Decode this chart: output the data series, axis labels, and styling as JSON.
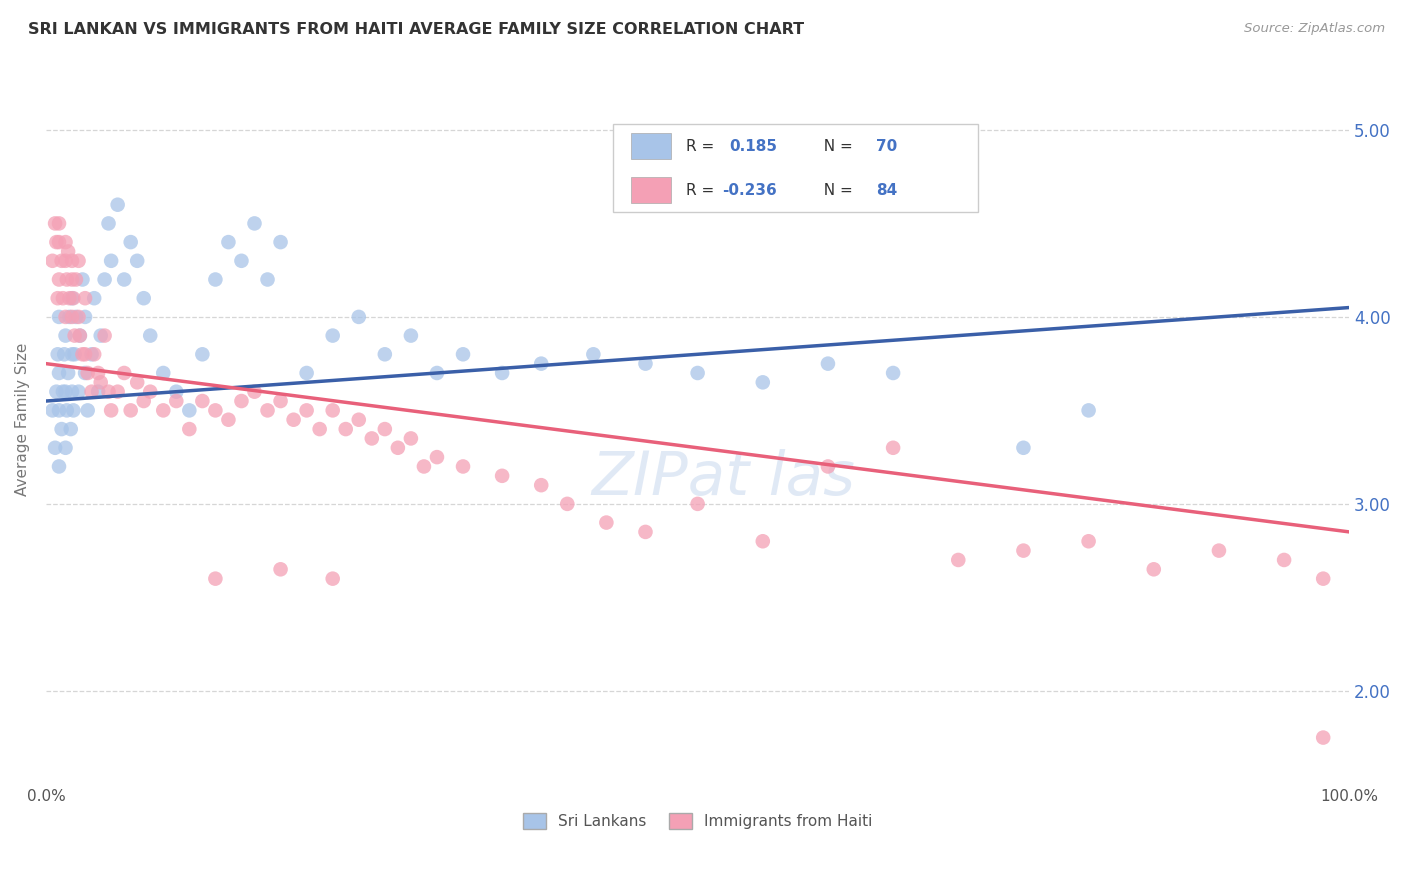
{
  "title": "SRI LANKAN VS IMMIGRANTS FROM HAITI AVERAGE FAMILY SIZE CORRELATION CHART",
  "source": "Source: ZipAtlas.com",
  "ylabel": "Average Family Size",
  "legend_label1": "Sri Lankans",
  "legend_label2": "Immigrants from Haiti",
  "legend_R1": "R =  0.185",
  "legend_N1": "N = 70",
  "legend_R2": "R = -0.236",
  "legend_N2": "N = 84",
  "watermark": "ZIPat las",
  "color_blue": "#a8c4e8",
  "color_pink": "#f4a0b5",
  "color_blue_line": "#3a5fa8",
  "color_pink_line": "#e8607a",
  "color_blue_text": "#4472c4",
  "yticks_right": [
    2.0,
    3.0,
    4.0,
    5.0
  ],
  "ylim": [
    1.5,
    5.4
  ],
  "xlim": [
    0.0,
    1.0
  ],
  "blue_line_x0": 0.0,
  "blue_line_y0": 3.55,
  "blue_line_x1": 1.0,
  "blue_line_y1": 4.05,
  "pink_line_x0": 0.0,
  "pink_line_y0": 3.75,
  "pink_line_x1": 1.0,
  "pink_line_y1": 2.85,
  "sri_lankans_x": [
    0.005,
    0.007,
    0.008,
    0.009,
    0.01,
    0.01,
    0.01,
    0.01,
    0.012,
    0.013,
    0.014,
    0.015,
    0.015,
    0.015,
    0.016,
    0.017,
    0.018,
    0.019,
    0.02,
    0.02,
    0.02,
    0.021,
    0.022,
    0.023,
    0.025,
    0.026,
    0.028,
    0.03,
    0.03,
    0.032,
    0.035,
    0.037,
    0.04,
    0.042,
    0.045,
    0.048,
    0.05,
    0.055,
    0.06,
    0.065,
    0.07,
    0.075,
    0.08,
    0.09,
    0.1,
    0.11,
    0.12,
    0.13,
    0.14,
    0.15,
    0.16,
    0.17,
    0.18,
    0.2,
    0.22,
    0.24,
    0.26,
    0.28,
    0.3,
    0.32,
    0.35,
    0.38,
    0.42,
    0.46,
    0.5,
    0.55,
    0.6,
    0.65,
    0.75,
    0.8
  ],
  "sri_lankans_y": [
    3.5,
    3.3,
    3.6,
    3.8,
    3.2,
    3.5,
    3.7,
    4.0,
    3.4,
    3.6,
    3.8,
    3.3,
    3.6,
    3.9,
    3.5,
    3.7,
    4.0,
    3.4,
    3.6,
    3.8,
    4.1,
    3.5,
    3.8,
    4.0,
    3.6,
    3.9,
    4.2,
    3.7,
    4.0,
    3.5,
    3.8,
    4.1,
    3.6,
    3.9,
    4.2,
    4.5,
    4.3,
    4.6,
    4.2,
    4.4,
    4.3,
    4.1,
    3.9,
    3.7,
    3.6,
    3.5,
    3.8,
    4.2,
    4.4,
    4.3,
    4.5,
    4.2,
    4.4,
    3.7,
    3.9,
    4.0,
    3.8,
    3.9,
    3.7,
    3.8,
    3.7,
    3.75,
    3.8,
    3.75,
    3.7,
    3.65,
    3.75,
    3.7,
    3.3,
    3.5
  ],
  "haiti_x": [
    0.005,
    0.007,
    0.008,
    0.009,
    0.01,
    0.01,
    0.01,
    0.012,
    0.013,
    0.015,
    0.015,
    0.015,
    0.016,
    0.017,
    0.018,
    0.02,
    0.02,
    0.02,
    0.021,
    0.022,
    0.023,
    0.025,
    0.025,
    0.026,
    0.028,
    0.03,
    0.03,
    0.032,
    0.035,
    0.037,
    0.04,
    0.042,
    0.045,
    0.048,
    0.05,
    0.055,
    0.06,
    0.065,
    0.07,
    0.075,
    0.08,
    0.09,
    0.1,
    0.11,
    0.12,
    0.13,
    0.14,
    0.15,
    0.16,
    0.17,
    0.18,
    0.19,
    0.2,
    0.21,
    0.22,
    0.23,
    0.24,
    0.25,
    0.26,
    0.27,
    0.28,
    0.29,
    0.3,
    0.32,
    0.35,
    0.38,
    0.4,
    0.43,
    0.46,
    0.5,
    0.55,
    0.6,
    0.65,
    0.7,
    0.75,
    0.8,
    0.85,
    0.9,
    0.95,
    0.98,
    0.13,
    0.18,
    0.22,
    0.98
  ],
  "haiti_y": [
    4.3,
    4.5,
    4.4,
    4.1,
    4.5,
    4.4,
    4.2,
    4.3,
    4.1,
    4.4,
    4.3,
    4.0,
    4.2,
    4.35,
    4.1,
    4.3,
    4.0,
    4.2,
    4.1,
    3.9,
    4.2,
    4.3,
    4.0,
    3.9,
    3.8,
    4.1,
    3.8,
    3.7,
    3.6,
    3.8,
    3.7,
    3.65,
    3.9,
    3.6,
    3.5,
    3.6,
    3.7,
    3.5,
    3.65,
    3.55,
    3.6,
    3.5,
    3.55,
    3.4,
    3.55,
    3.5,
    3.45,
    3.55,
    3.6,
    3.5,
    3.55,
    3.45,
    3.5,
    3.4,
    3.5,
    3.4,
    3.45,
    3.35,
    3.4,
    3.3,
    3.35,
    3.2,
    3.25,
    3.2,
    3.15,
    3.1,
    3.0,
    2.9,
    2.85,
    3.0,
    2.8,
    3.2,
    3.3,
    2.7,
    2.75,
    2.8,
    2.65,
    2.75,
    2.7,
    2.6,
    2.6,
    2.65,
    2.6,
    1.75
  ]
}
